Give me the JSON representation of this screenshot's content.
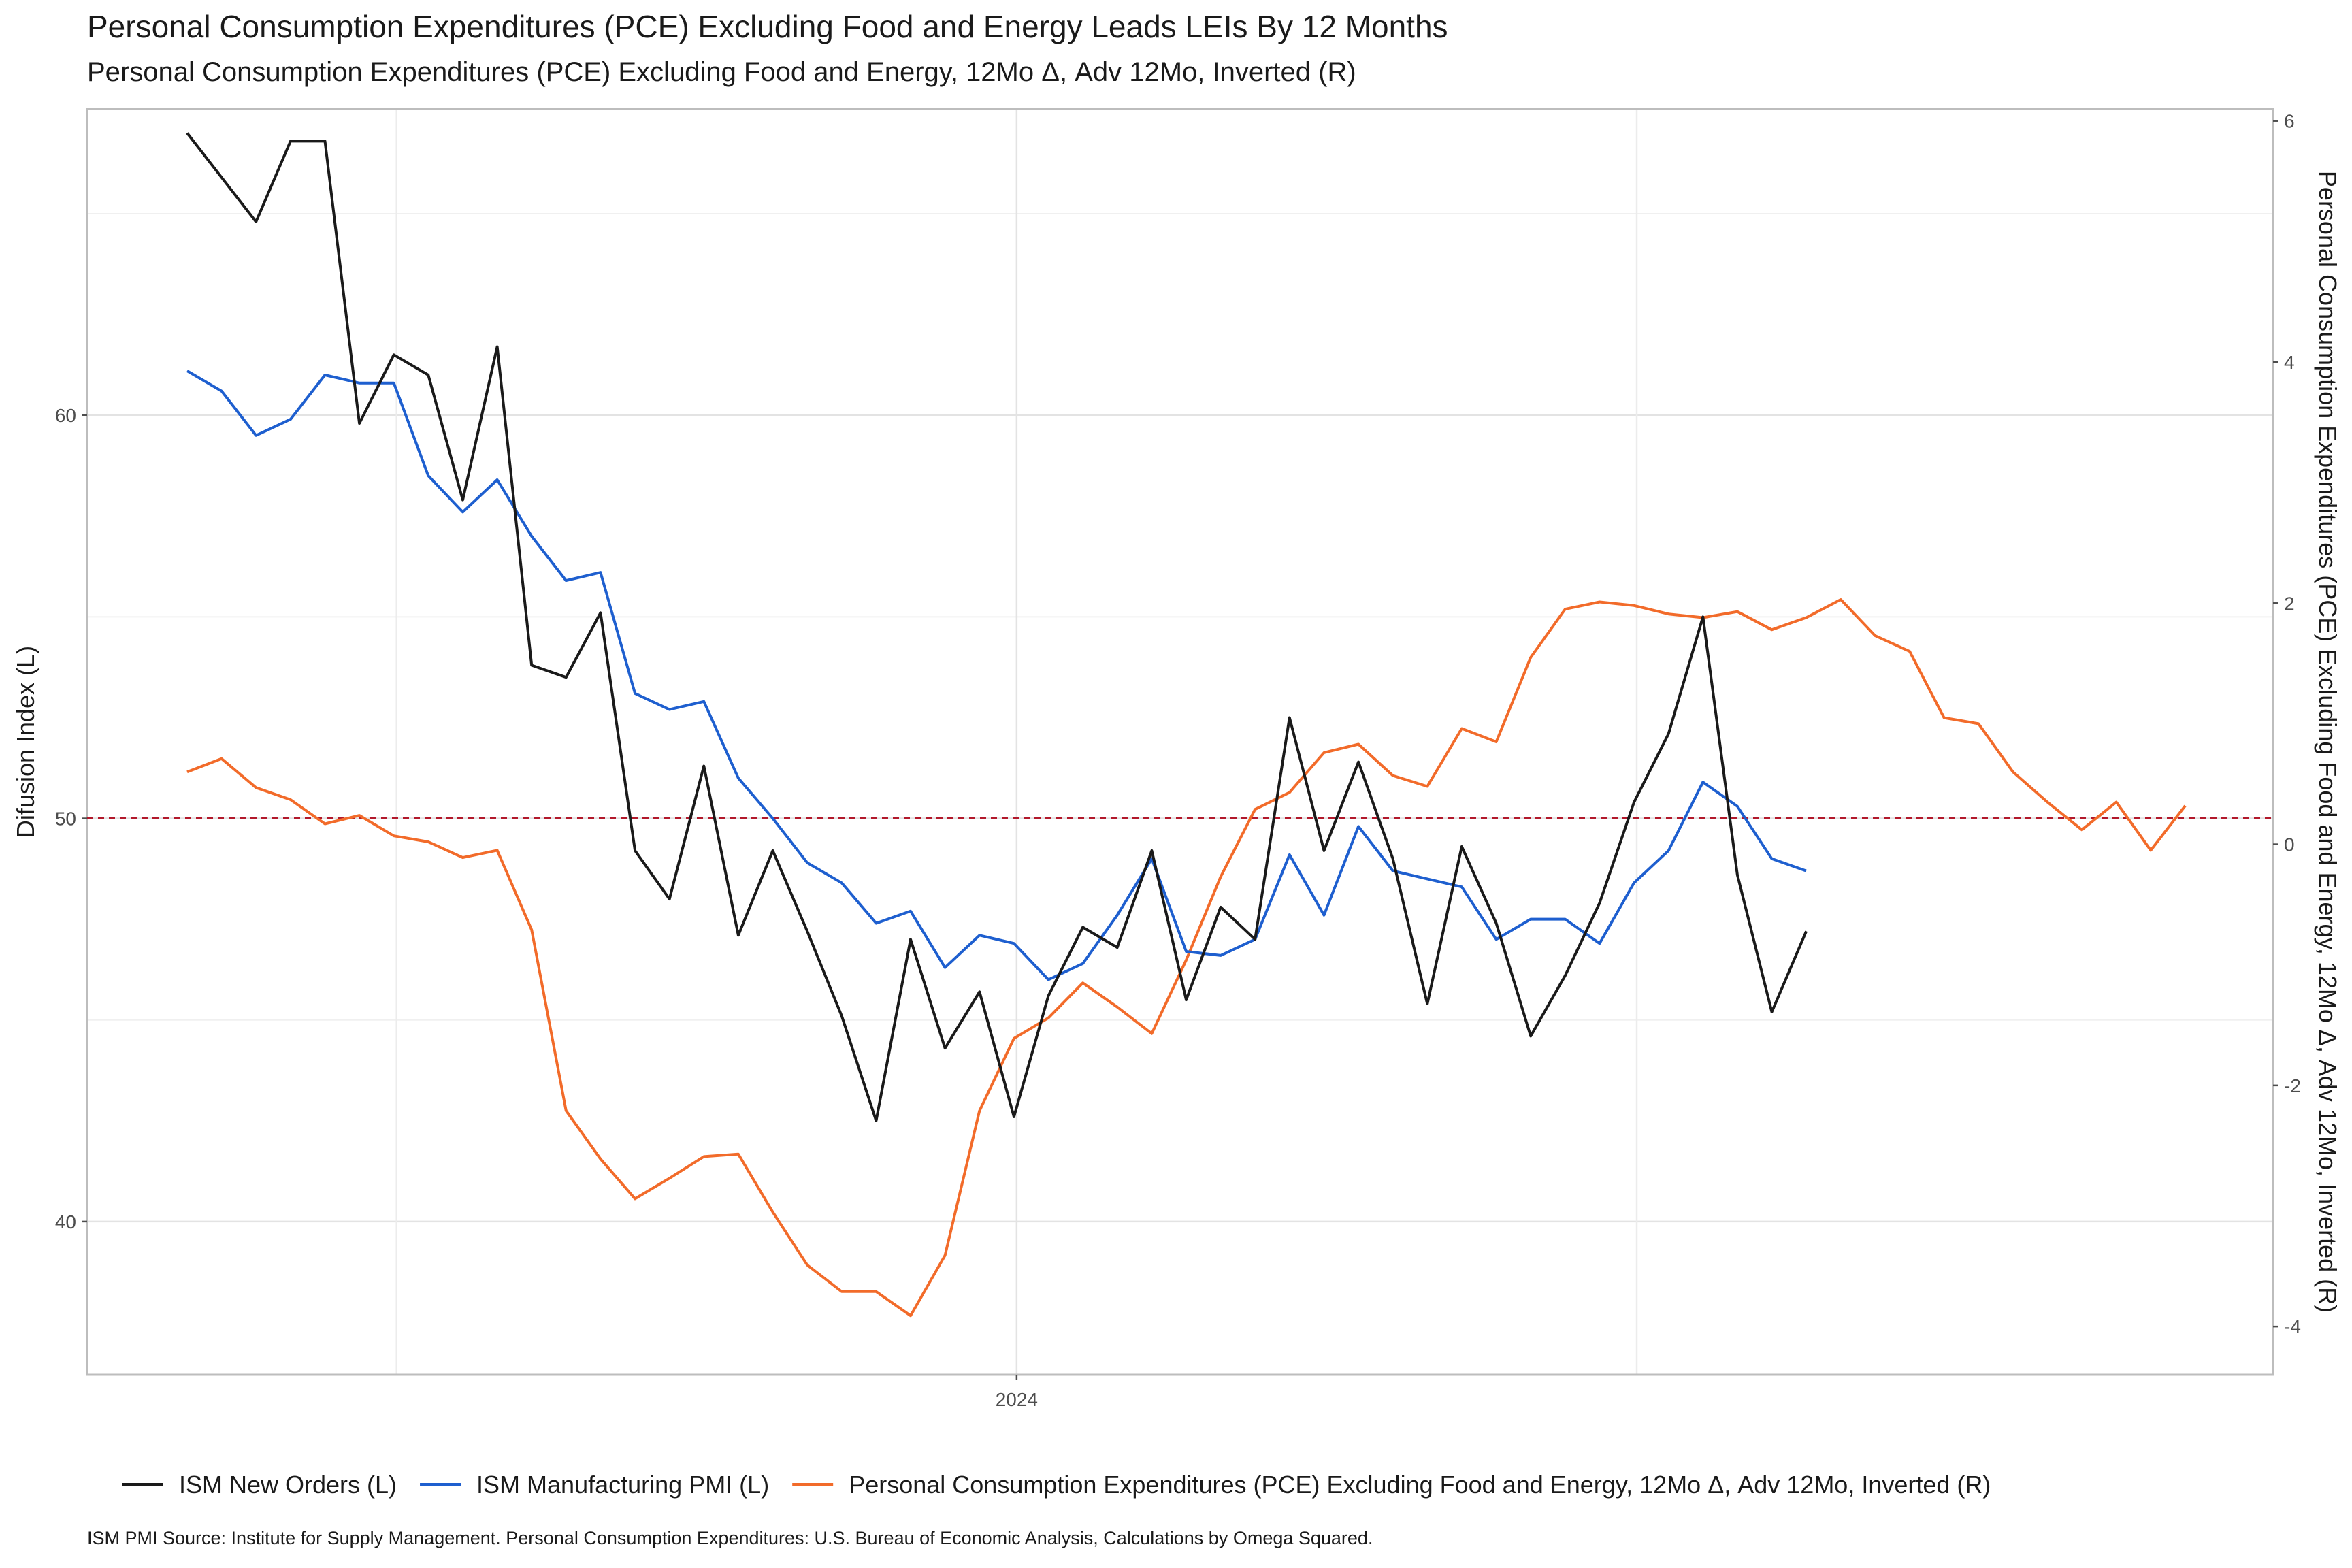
{
  "header": {
    "title": "Personal Consumption Expenditures (PCE) Excluding Food and Energy  Leads LEIs By  12  Months",
    "subtitle": "Personal Consumption Expenditures (PCE) Excluding Food and Energy, 12Mo Δ, Adv 12Mo, Inverted (R)"
  },
  "footer": {
    "caption": "ISM PMI Source: Institute for Supply Management. Personal Consumption Expenditures: U.S. Bureau of Economic Analysis, Calculations by Omega Squared."
  },
  "chart_data": {
    "type": "line",
    "x_tick_labels": [
      "2024"
    ],
    "ylabel": "Difusion Index (L)",
    "y2label": "Personal Consumption Expenditures (PCE) Excluding Food and Energy, 12Mo Δ, Adv 12Mo, Inverted (R)",
    "ylim": [
      36.2,
      67.6
    ],
    "y2lim": [
      -4.4,
      6.1
    ],
    "y_ticks": [
      40,
      50,
      60
    ],
    "y_tick_labels": [
      "40",
      "50",
      "60"
    ],
    "y2_ticks": [
      -4,
      -2,
      0,
      2,
      4,
      6
    ],
    "y2_tick_labels": [
      "-4",
      "-2",
      "0",
      "2",
      "4",
      "6"
    ],
    "x_range": [
      0,
      58
    ],
    "reference_line": {
      "y": 50,
      "color": "#b2182b",
      "style": "dashed"
    },
    "grid": true,
    "legend_position": "bottom",
    "series": [
      {
        "name": "ISM New Orders (L)",
        "axis": "left",
        "color": "#1a1a1a",
        "x": [
          0,
          1,
          2,
          3,
          4,
          5,
          6,
          7,
          8,
          9,
          10,
          11,
          12,
          13,
          14,
          15,
          16,
          17,
          18,
          19,
          20,
          21,
          22,
          23,
          24,
          25,
          26,
          27,
          28,
          29,
          30,
          31,
          32,
          33,
          34,
          35,
          36,
          37,
          38,
          39,
          40,
          41,
          42,
          43,
          44,
          45,
          46,
          47
        ],
        "values": [
          67.0,
          65.9,
          64.8,
          66.8,
          66.8,
          59.8,
          61.5,
          61.0,
          57.9,
          61.7,
          53.8,
          53.5,
          55.1,
          49.2,
          48.0,
          51.3,
          47.1,
          49.2,
          47.2,
          45.1,
          42.5,
          47.0,
          44.3,
          45.7,
          42.6,
          45.6,
          47.3,
          46.8,
          49.2,
          45.5,
          47.8,
          47.0,
          52.5,
          49.2,
          51.4,
          49.0,
          45.4,
          49.3,
          47.4,
          44.6,
          46.1,
          47.9,
          50.4,
          52.1,
          55.0,
          48.6,
          45.2,
          47.2
        ]
      },
      {
        "name": "ISM Manufacturing PMI (L)",
        "axis": "left",
        "color": "#1e5fcf",
        "x": [
          0,
          1,
          2,
          3,
          4,
          5,
          6,
          7,
          8,
          9,
          10,
          11,
          12,
          13,
          14,
          15,
          16,
          17,
          18,
          19,
          20,
          21,
          22,
          23,
          24,
          25,
          26,
          27,
          28,
          29,
          30,
          31,
          32,
          33,
          34,
          35,
          36,
          37,
          38,
          39,
          40,
          41,
          42,
          43,
          44,
          45,
          46,
          47
        ],
        "values": [
          61.1,
          60.6,
          59.5,
          59.9,
          61.0,
          60.8,
          60.8,
          58.5,
          57.6,
          58.4,
          57.0,
          55.9,
          56.1,
          53.1,
          52.7,
          52.9,
          51.0,
          50.0,
          48.9,
          48.4,
          47.4,
          47.7,
          46.3,
          47.1,
          46.9,
          46.0,
          46.4,
          47.6,
          49.0,
          46.7,
          46.6,
          47.0,
          49.1,
          47.6,
          49.8,
          48.7,
          48.5,
          48.3,
          47.0,
          47.5,
          47.5,
          46.9,
          48.4,
          49.2,
          50.9,
          50.3,
          49.0,
          48.7
        ]
      },
      {
        "name": "Personal Consumption Expenditures (PCE) Excluding Food and Energy, 12Mo Δ, Adv 12Mo, Inverted (R)",
        "axis": "right",
        "color": "#f26b2a",
        "x": [
          0,
          1,
          2,
          3,
          4,
          5,
          6,
          7,
          8,
          9,
          10,
          11,
          12,
          13,
          14,
          15,
          16,
          17,
          18,
          19,
          20,
          21,
          22,
          23,
          24,
          25,
          26,
          27,
          28,
          29,
          30,
          31,
          32,
          33,
          34,
          35,
          36,
          37,
          38,
          39,
          40,
          41,
          42,
          43,
          44,
          45,
          46,
          47,
          48,
          49,
          50,
          51,
          52,
          53,
          54,
          55,
          56,
          57,
          58
        ],
        "values": [
          0.6,
          0.71,
          0.47,
          0.37,
          0.17,
          0.24,
          0.07,
          0.02,
          -0.11,
          -0.05,
          -0.71,
          -2.21,
          -2.61,
          -2.94,
          -2.77,
          -2.59,
          -2.57,
          -3.05,
          -3.49,
          -3.71,
          -3.71,
          -3.91,
          -3.41,
          -2.21,
          -1.61,
          -1.44,
          -1.15,
          -1.35,
          -1.57,
          -0.96,
          -0.27,
          0.29,
          0.43,
          0.76,
          0.83,
          0.57,
          0.48,
          0.96,
          0.85,
          1.55,
          1.95,
          2.01,
          1.98,
          1.91,
          1.88,
          1.93,
          1.78,
          1.88,
          2.03,
          1.73,
          1.6,
          1.05,
          1.0,
          0.6,
          0.35,
          0.12,
          0.35,
          -0.05,
          0.32
        ]
      }
    ]
  }
}
